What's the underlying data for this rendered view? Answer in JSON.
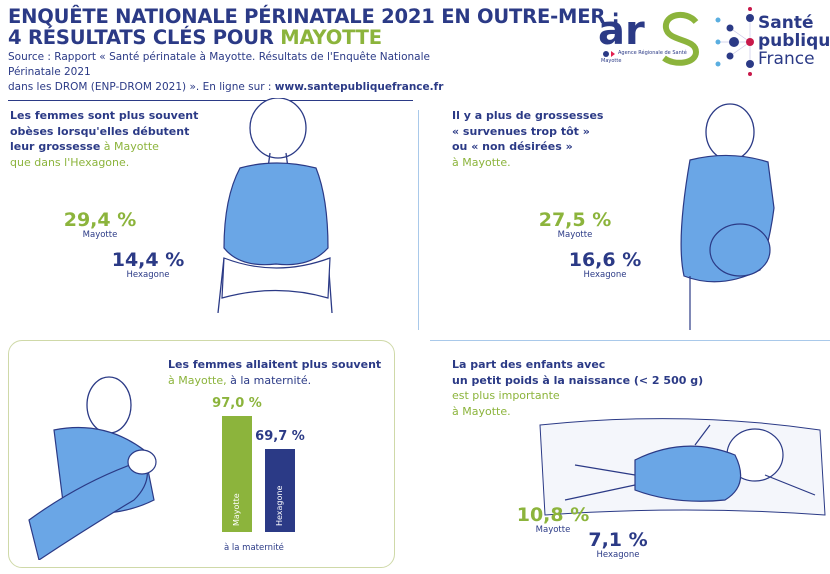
{
  "header": {
    "title_line1": "ENQUÊTE NATIONALE PÉRINATALE 2021 EN OUTRE-MER :",
    "title_line2_prefix": "4 RÉSULTATS CLÉS POUR ",
    "title_line2_highlight": "MAYOTTE",
    "source_line1": "Source : Rapport « Santé périnatale à Mayotte. Résultats de l'Enquête Nationale Périnatale 2021",
    "source_line2": "dans les DROM (ENP-DROM 2021) ». En ligne sur : ",
    "source_url": "www.santepubliquefrance.fr"
  },
  "logos": {
    "ars": {
      "mark": "ars",
      "subtitle": "Agence Régionale de Santé",
      "region": "Mayotte"
    },
    "spf": {
      "line1": "Santé",
      "line2": "publique",
      "line3": "France"
    }
  },
  "colors": {
    "navy": "#2b3a86",
    "green": "#8cb43c",
    "figure_blue": "#6aa6e6"
  },
  "panels": [
    {
      "text_bold": [
        "Les femmes sont plus souvent",
        "obèses lorsqu'elles débutent",
        "leur grossesse"
      ],
      "text_green": " à Mayotte",
      "text_plain": "que dans l'Hexagone.",
      "mayotte": {
        "value": "29,4 %",
        "label": "Mayotte"
      },
      "hexagone": {
        "value": "14,4 %",
        "label": "Hexagone"
      }
    },
    {
      "text_bold": [
        "Il y a plus de grossesses",
        "« survenues trop tôt »",
        "ou « non désirées »"
      ],
      "text_green": "à Mayotte.",
      "mayotte": {
        "value": "27,5 %",
        "label": "Mayotte"
      },
      "hexagone": {
        "value": "16,6 %",
        "label": "Hexagone"
      }
    },
    {
      "text_bold": "Les femmes allaitent plus souvent",
      "text_green": "à Mayotte,",
      "text_plain": " à la maternité."
    },
    {
      "text_bold": [
        "La part des enfants avec",
        "un petit poids à la naissance (< 2 500 g)"
      ],
      "text_green": [
        "est plus importante",
        "à Mayotte."
      ],
      "mayotte": {
        "value": "10,8 %",
        "label": "Mayotte"
      },
      "hexagone": {
        "value": "7,1 %",
        "label": "Hexagone"
      }
    }
  ],
  "chart_data": {
    "type": "bar",
    "categories": [
      "Mayotte",
      "Hexagone"
    ],
    "values": [
      97.0,
      69.7
    ],
    "value_labels": [
      "97,0 %",
      "69,7 %"
    ],
    "colors": [
      "#8cb43c",
      "#2b3a86"
    ],
    "xlabel": "à la maternité",
    "ylim": [
      0,
      100
    ]
  }
}
